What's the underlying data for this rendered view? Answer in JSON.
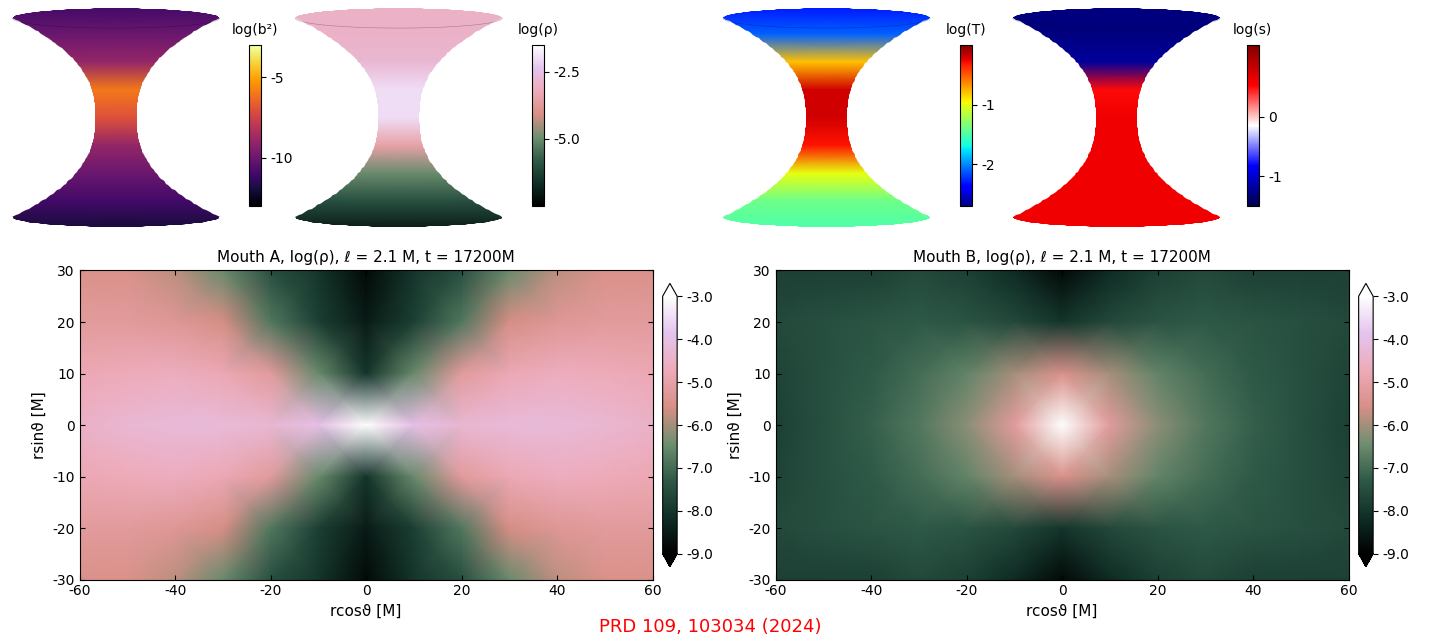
{
  "chart_data": [
    {
      "type": "surface",
      "colorbar_label": "log(b²)",
      "profile": [
        -11,
        -10,
        -9,
        -6,
        -7,
        -9,
        -10,
        -11,
        -12
      ],
      "colorbar_range": [
        -13,
        -3
      ],
      "colorbar_ticks": [
        -5,
        -10
      ]
    },
    {
      "type": "surface",
      "colorbar_label": "log(ρ)",
      "profile": [
        -3.0,
        -3.0,
        -2.8,
        -2.0,
        -2.0,
        -3.5,
        -5.0,
        -6.0,
        -7.0
      ],
      "colorbar_range": [
        -7.5,
        -1.5
      ],
      "colorbar_ticks": [
        -2.5,
        {
          "value": -5,
          "label": "-5.0"
        }
      ]
    },
    {
      "type": "surface",
      "colorbar_label": "log(T)",
      "profile": [
        -2.3,
        -2.1,
        -0.8,
        -0.2,
        -0.2,
        -0.3,
        -1.0,
        -1.4,
        -1.5
      ],
      "colorbar_range": [
        -2.7,
        0
      ],
      "colorbar_ticks": [
        -1,
        -2
      ]
    },
    {
      "type": "surface",
      "colorbar_label": "log(s)",
      "profile": [
        -1.3,
        -1.3,
        -1.2,
        0.5,
        0.6,
        0.6,
        0.6,
        0.6,
        0.6
      ],
      "colorbar_range": [
        -1.5,
        1.2
      ],
      "colorbar_ticks": [
        0,
        -1
      ]
    },
    {
      "type": "heatmap",
      "title": "Mouth A, log(ρ), ℓ = 2.1 M, t = 17200M",
      "x_label": "rcosϑ [M]",
      "y_label": "rsinϑ [M]",
      "x": [
        -60,
        -50,
        -40,
        -30,
        -20,
        -10,
        0,
        10,
        20,
        30,
        40,
        50,
        60
      ],
      "y": [
        30,
        20,
        10,
        0,
        -10,
        -20,
        -30
      ],
      "cells": [
        [
          -5.5,
          -5.5,
          -5.8,
          -6.5,
          -7.5,
          -8.0,
          -8.8,
          -8.0,
          -7.5,
          -6.5,
          -5.8,
          -5.5,
          -5.5
        ],
        [
          -5.2,
          -5.2,
          -5.3,
          -5.6,
          -6.8,
          -7.8,
          -8.5,
          -7.8,
          -6.8,
          -5.6,
          -5.3,
          -5.2,
          -5.2
        ],
        [
          -4.8,
          -4.7,
          -4.6,
          -4.8,
          -5.2,
          -6.5,
          -8.0,
          -6.5,
          -5.2,
          -4.8,
          -4.6,
          -4.7,
          -4.8
        ],
        [
          -4.5,
          -4.3,
          -4.2,
          -4.2,
          -4.3,
          -4.0,
          -3.0,
          -4.0,
          -4.3,
          -4.2,
          -4.2,
          -4.3,
          -4.5
        ],
        [
          -4.8,
          -4.7,
          -4.6,
          -4.8,
          -5.2,
          -6.5,
          -8.0,
          -6.5,
          -5.2,
          -4.8,
          -4.6,
          -4.7,
          -4.8
        ],
        [
          -5.2,
          -5.2,
          -5.3,
          -5.6,
          -6.8,
          -7.8,
          -8.5,
          -7.8,
          -6.8,
          -5.6,
          -5.3,
          -5.2,
          -5.2
        ],
        [
          -5.5,
          -5.5,
          -5.8,
          -6.5,
          -7.5,
          -8.0,
          -8.8,
          -8.0,
          -7.5,
          -6.5,
          -5.8,
          -5.5,
          -5.5
        ]
      ],
      "xlim": [
        -60,
        60
      ],
      "ylim": [
        -30,
        30
      ],
      "xticks": [
        -60,
        -40,
        -20,
        0,
        20,
        40,
        60
      ],
      "yticks": [
        -30,
        -20,
        -10,
        0,
        10,
        20,
        30
      ],
      "colorbar_range": [
        -9,
        -3
      ],
      "colorbar_ticks": [
        {
          "value": -3,
          "label": "-3.0"
        },
        {
          "value": -4,
          "label": "-4.0"
        },
        {
          "value": -5,
          "label": "-5.0"
        },
        {
          "value": -6,
          "label": "-6.0"
        },
        {
          "value": -7,
          "label": "-7.0"
        },
        {
          "value": -8,
          "label": "-8.0"
        },
        {
          "value": -9,
          "label": "-9.0"
        }
      ]
    },
    {
      "type": "heatmap",
      "title": "Mouth B, log(ρ), ℓ = 2.1 M, t = 17200M",
      "x_label": "rcosϑ [M]",
      "y_label": "rsinϑ [M]",
      "x": [
        -60,
        -50,
        -40,
        -30,
        -20,
        -10,
        0,
        10,
        20,
        30,
        40,
        50,
        60
      ],
      "y": [
        30,
        20,
        10,
        0,
        -10,
        -20,
        -30
      ],
      "cells": [
        [
          -7.8,
          -7.8,
          -7.8,
          -7.6,
          -7.8,
          -8.2,
          -8.8,
          -8.2,
          -7.8,
          -7.6,
          -7.8,
          -7.8,
          -7.8
        ],
        [
          -7.6,
          -7.5,
          -7.4,
          -7.3,
          -7.4,
          -7.6,
          -8.0,
          -7.6,
          -7.4,
          -7.3,
          -7.4,
          -7.5,
          -7.6
        ],
        [
          -7.7,
          -7.5,
          -7.3,
          -7.0,
          -6.6,
          -6.0,
          -5.5,
          -6.0,
          -6.6,
          -7.0,
          -7.3,
          -7.5,
          -7.7
        ],
        [
          -7.8,
          -7.5,
          -7.2,
          -6.8,
          -6.2,
          -5.2,
          -3.0,
          -5.2,
          -6.2,
          -6.8,
          -7.2,
          -7.5,
          -7.8
        ],
        [
          -7.7,
          -7.5,
          -7.3,
          -7.0,
          -6.6,
          -6.0,
          -5.5,
          -6.0,
          -6.6,
          -7.0,
          -7.3,
          -7.5,
          -7.7
        ],
        [
          -7.6,
          -7.5,
          -7.4,
          -7.3,
          -7.4,
          -7.6,
          -8.0,
          -7.6,
          -7.4,
          -7.3,
          -7.4,
          -7.5,
          -7.6
        ],
        [
          -7.8,
          -7.8,
          -7.8,
          -7.6,
          -7.8,
          -8.2,
          -8.8,
          -8.2,
          -7.8,
          -7.6,
          -7.8,
          -7.8,
          -7.8
        ]
      ],
      "xlim": [
        -60,
        60
      ],
      "ylim": [
        -30,
        30
      ],
      "xticks": [
        -60,
        -40,
        -20,
        0,
        20,
        40,
        60
      ],
      "yticks": [
        -30,
        -20,
        -10,
        0,
        10,
        20,
        30
      ],
      "colorbar_range": [
        -9,
        -3
      ],
      "colorbar_ticks": [
        {
          "value": -3,
          "label": "-3.0"
        },
        {
          "value": -4,
          "label": "-4.0"
        },
        {
          "value": -5,
          "label": "-5.0"
        },
        {
          "value": -6,
          "label": "-6.0"
        },
        {
          "value": -7,
          "label": "-7.0"
        },
        {
          "value": -8,
          "label": "-8.0"
        },
        {
          "value": -9,
          "label": "-9.0"
        }
      ]
    }
  ],
  "caption": "PRD 109, 103034 (2024)"
}
